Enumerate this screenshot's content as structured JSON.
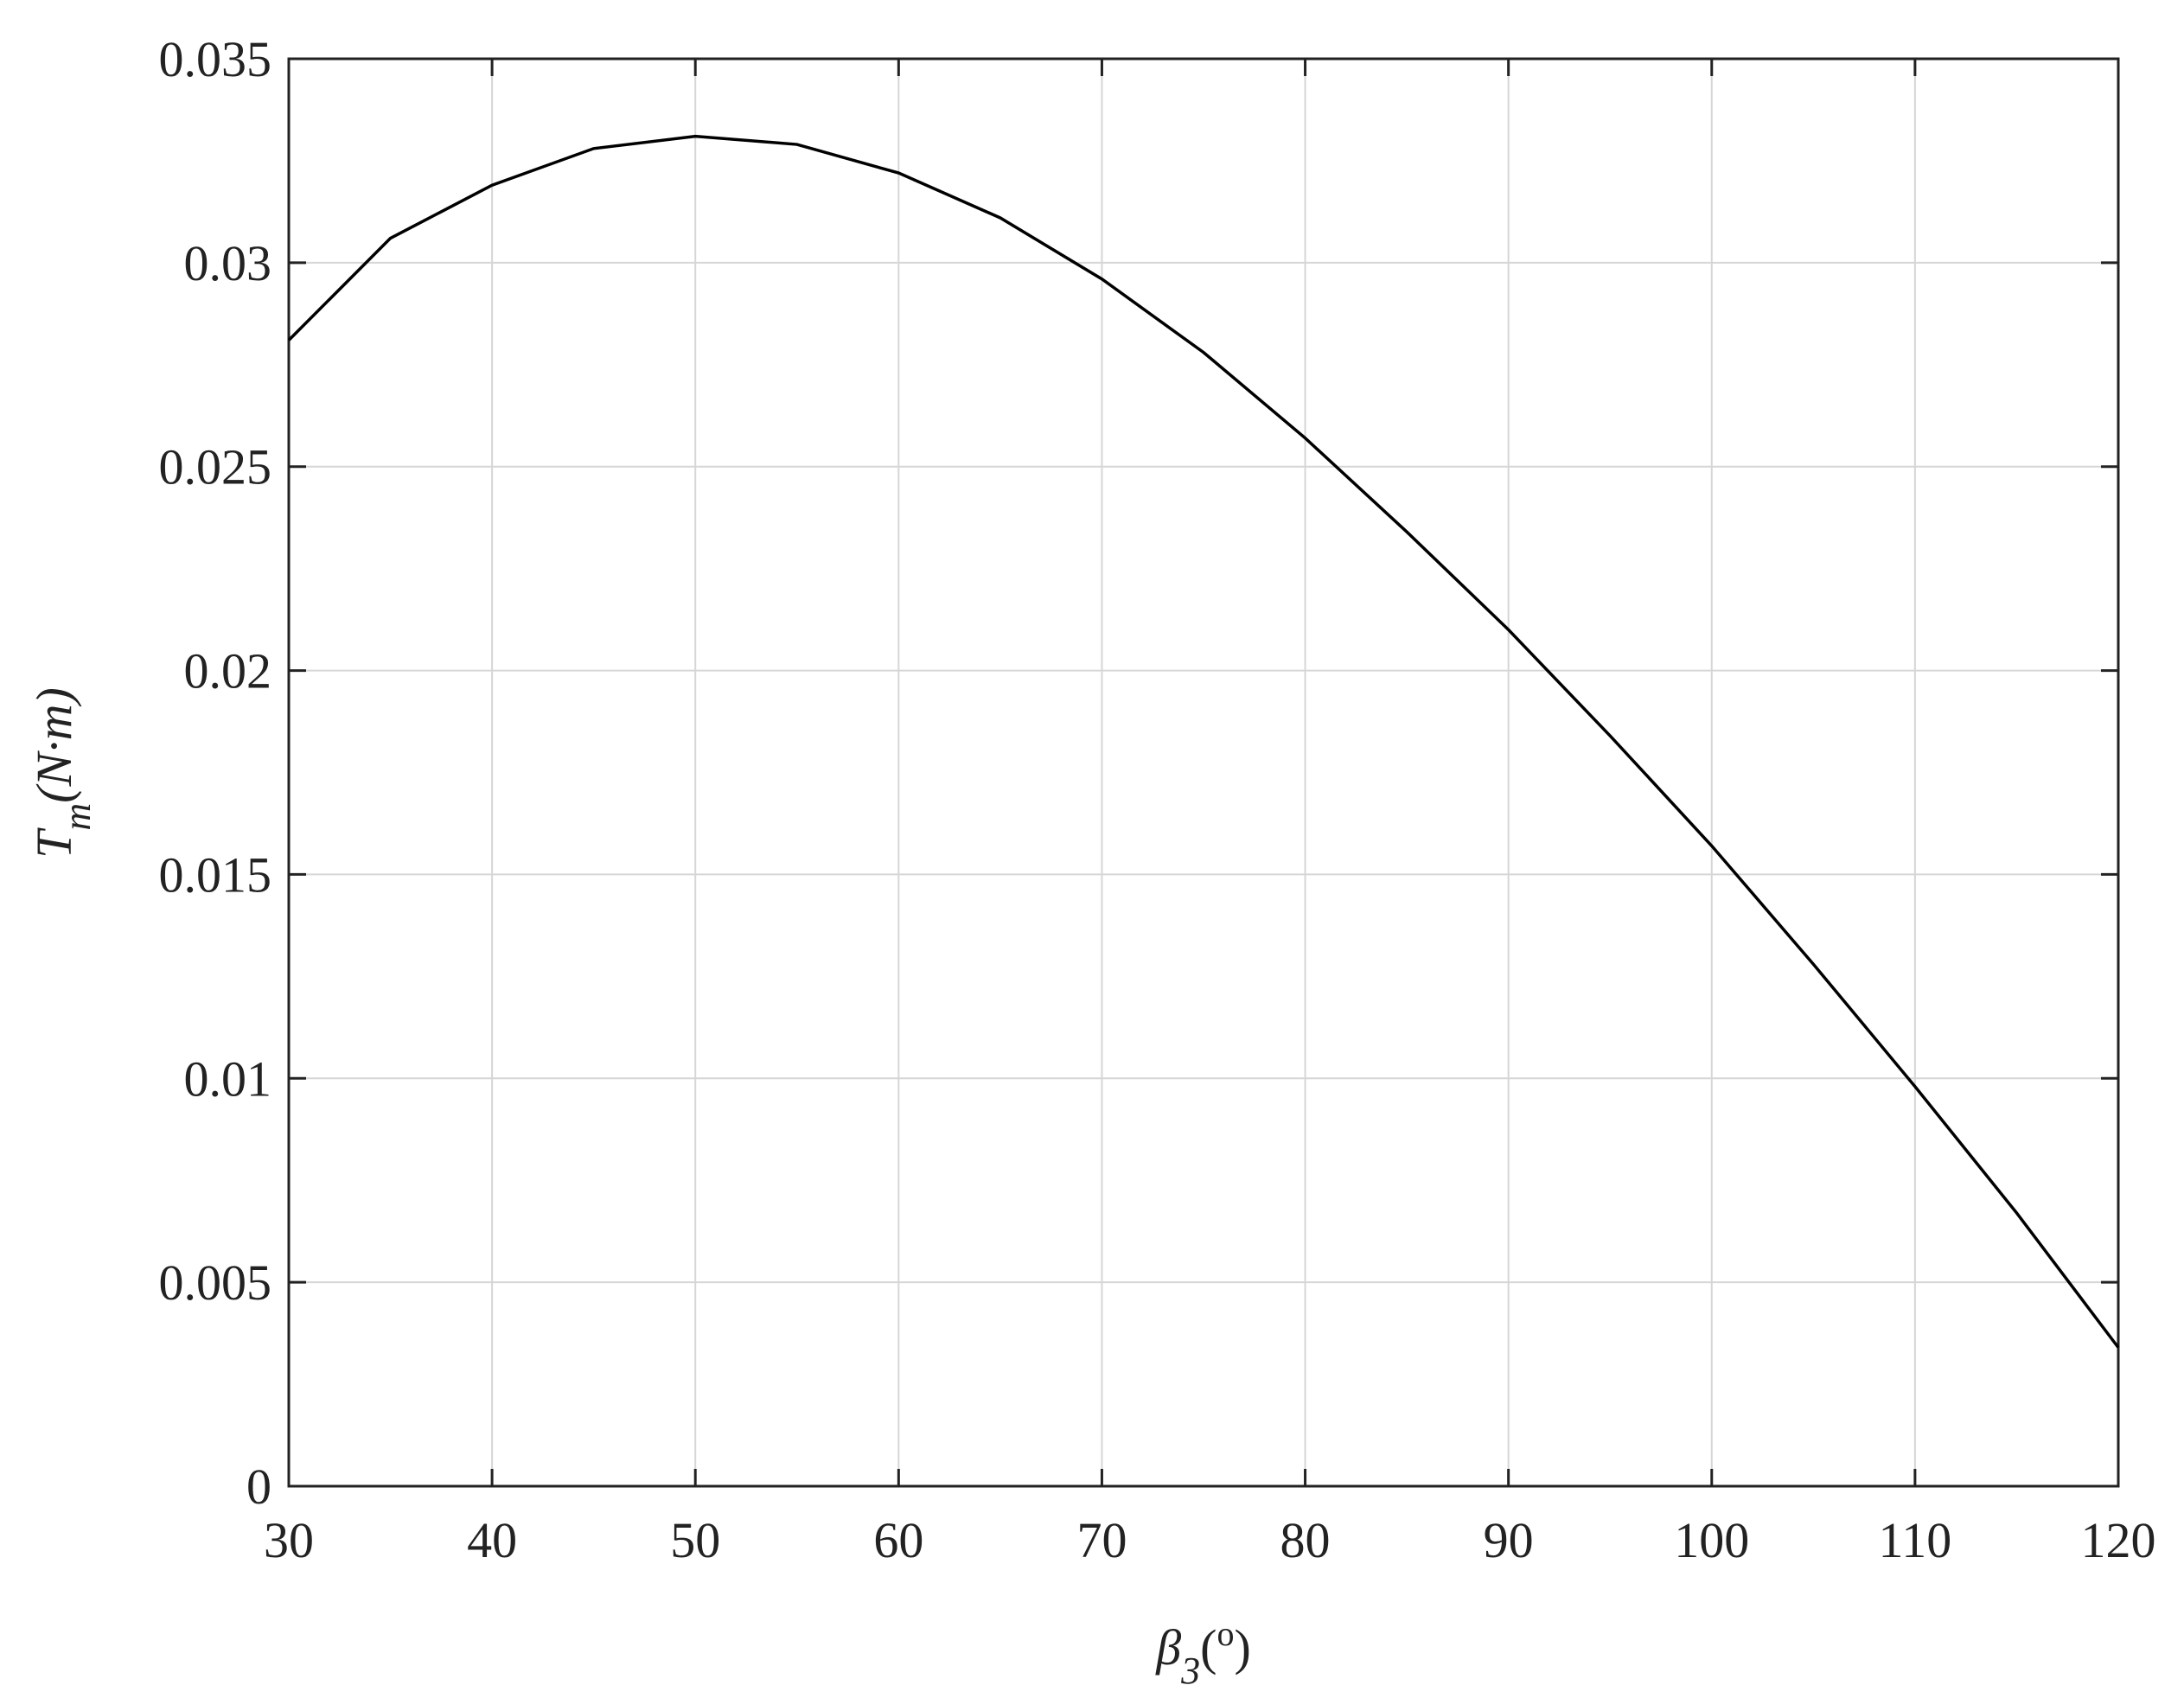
{
  "chart_data": {
    "type": "line",
    "x_label": {
      "base": "β",
      "sub": "3",
      "open": "(",
      "sup": "o",
      "close": ")"
    },
    "y_label": {
      "base": "T",
      "sub": "m",
      "rest": "(N·m)"
    },
    "x": [
      30,
      35,
      40,
      45,
      50,
      55,
      60,
      65,
      70,
      75,
      80,
      85,
      90,
      95,
      100,
      105,
      110,
      115,
      120
    ],
    "series": [
      {
        "color": "#000000",
        "values": [
          0.0281,
          0.0306,
          0.0319,
          0.0328,
          0.0331,
          0.0329,
          0.0322,
          0.0311,
          0.0296,
          0.0278,
          0.0257,
          0.0234,
          0.021,
          0.0184,
          0.0157,
          0.0128,
          0.0098,
          0.0067,
          0.0034
        ]
      }
    ],
    "xlim": [
      30,
      120
    ],
    "xticks": [
      30,
      40,
      50,
      60,
      70,
      80,
      90,
      100,
      110,
      120
    ],
    "ylim": [
      0,
      0.035
    ],
    "yticks": [
      0,
      0.005,
      0.01,
      0.015,
      0.02,
      0.025,
      0.03,
      0.035
    ],
    "grid": true
  }
}
